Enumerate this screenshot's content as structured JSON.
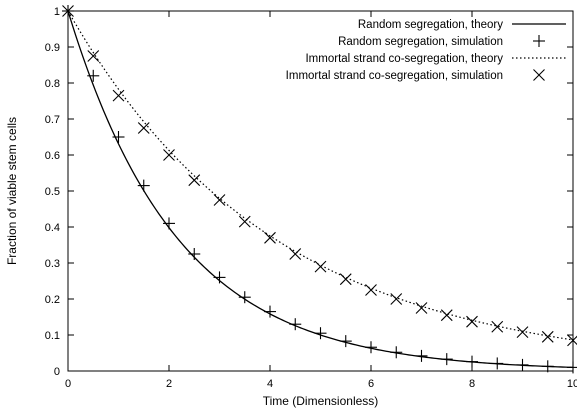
{
  "chart_data": {
    "type": "line",
    "title": "",
    "xlabel": "Time (Dimensionless)",
    "ylabel": "Fraction of viable stem cells",
    "xlim": [
      0,
      10
    ],
    "ylim": [
      0,
      1
    ],
    "xticks": [
      0,
      2,
      4,
      6,
      8,
      10
    ],
    "yticks": [
      0,
      0.1,
      0.2,
      0.3,
      0.4,
      0.5,
      0.6,
      0.7,
      0.8,
      0.9,
      1
    ],
    "grid": false,
    "legend_position": "top-right",
    "series": [
      {
        "name": "Random segregation, theory",
        "style": "solid-line",
        "decay_rate": 0.4605,
        "x": [
          0,
          0.5,
          1,
          1.5,
          2,
          2.5,
          3,
          3.5,
          4,
          4.5,
          5,
          5.5,
          6,
          6.5,
          7,
          7.5,
          8,
          8.5,
          9,
          9.5,
          10
        ],
        "y": [
          1,
          0.794,
          0.631,
          0.501,
          0.398,
          0.316,
          0.251,
          0.2,
          0.158,
          0.126,
          0.1,
          0.079,
          0.063,
          0.05,
          0.04,
          0.032,
          0.025,
          0.02,
          0.016,
          0.013,
          0.01
        ]
      },
      {
        "name": "Random segregation, simulation",
        "style": "plus-marker",
        "x": [
          0,
          0.5,
          1,
          1.5,
          2,
          2.5,
          3,
          3.5,
          4,
          4.5,
          5,
          5.5,
          6,
          6.5,
          7,
          7.5,
          8,
          8.5,
          9,
          9.5,
          10
        ],
        "y": [
          1,
          0.82,
          0.65,
          0.515,
          0.41,
          0.325,
          0.26,
          0.205,
          0.165,
          0.13,
          0.105,
          0.083,
          0.066,
          0.052,
          0.042,
          0.033,
          0.026,
          0.021,
          0.017,
          0.013,
          0.01
        ]
      },
      {
        "name": "Immortal strand co-segregation, theory",
        "style": "dotted-line",
        "decay_rate": 0.2449,
        "x": [
          0,
          0.5,
          1,
          1.5,
          2,
          2.5,
          3,
          3.5,
          4,
          4.5,
          5,
          5.5,
          6,
          6.5,
          7,
          7.5,
          8,
          8.5,
          9,
          9.5,
          10
        ],
        "y": [
          1,
          0.885,
          0.783,
          0.693,
          0.613,
          0.542,
          0.48,
          0.424,
          0.375,
          0.332,
          0.294,
          0.26,
          0.23,
          0.204,
          0.18,
          0.159,
          0.141,
          0.125,
          0.11,
          0.098,
          0.086
        ]
      },
      {
        "name": "Immortal strand co-segregation, simulation",
        "style": "x-marker",
        "x": [
          0,
          0.5,
          1,
          1.5,
          2,
          2.5,
          3,
          3.5,
          4,
          4.5,
          5,
          5.5,
          6,
          6.5,
          7,
          7.5,
          8,
          8.5,
          9,
          9.5,
          10
        ],
        "y": [
          1,
          0.875,
          0.765,
          0.675,
          0.6,
          0.53,
          0.475,
          0.415,
          0.37,
          0.325,
          0.29,
          0.255,
          0.225,
          0.2,
          0.175,
          0.155,
          0.137,
          0.123,
          0.108,
          0.095,
          0.085
        ]
      }
    ]
  }
}
